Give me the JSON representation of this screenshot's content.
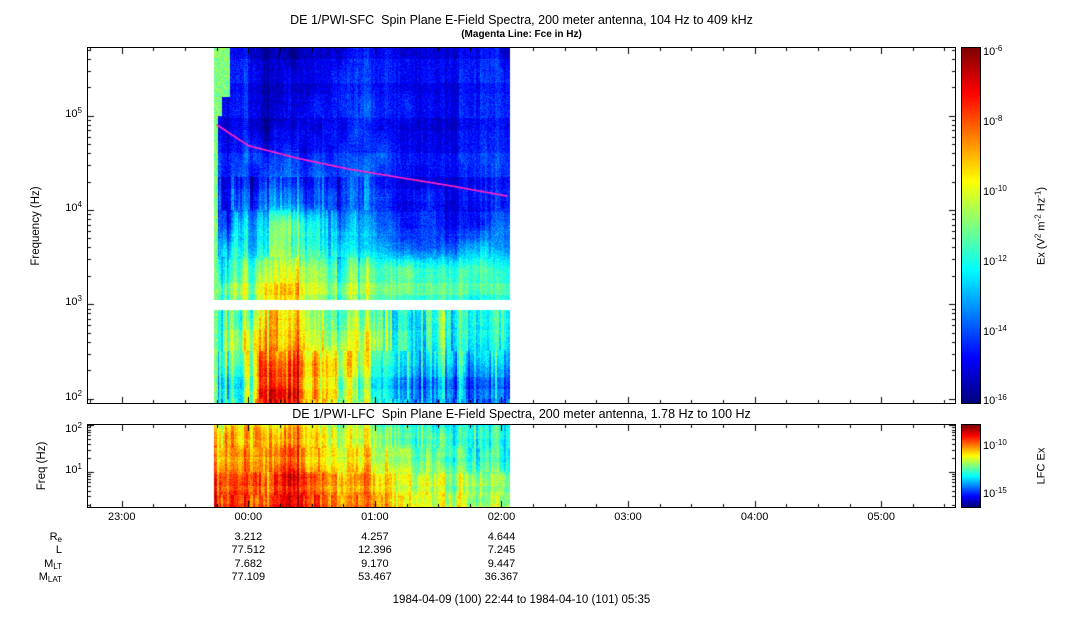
{
  "meta": {
    "background": "#ffffff",
    "axis_color": "#000000"
  },
  "header": {
    "title": "DE 1/PWI-SFC  Spin Plane E-Field Spectra, 200 meter antenna, 104 Hz to 409 kHz",
    "subtitle": "(Magenta Line: Fce in Hz)"
  },
  "panel2": {
    "title": "DE 1/PWI-LFC  Spin Plane E-Field Spectra, 200 meter antenna, 1.78 Hz to 100 Hz"
  },
  "footer": {
    "time_range": "1984-04-09 (100) 22:44 to 1984-04-10 (101) 05:35"
  },
  "x_axis": {
    "range_hours": [
      -1.2667,
      5.5833
    ],
    "ticks": [
      {
        "label": "23:00",
        "hour": -1
      },
      {
        "label": "00:00",
        "hour": 0
      },
      {
        "label": "01:00",
        "hour": 1
      },
      {
        "label": "02:00",
        "hour": 2
      },
      {
        "label": "03:00",
        "hour": 3
      },
      {
        "label": "04:00",
        "hour": 4
      },
      {
        "label": "05:00",
        "hour": 5
      }
    ]
  },
  "ephemeris": {
    "value_hours": [
      0,
      1,
      2
    ],
    "rows": [
      {
        "label": "R",
        "sub": "e",
        "values": [
          "3.212",
          "4.257",
          "4.644"
        ]
      },
      {
        "label": "L",
        "sub": "",
        "values": [
          "77.512",
          "12.396",
          "7.245"
        ]
      },
      {
        "label": "M",
        "sub": "LT",
        "values": [
          "7.682",
          "9.170",
          "9.447"
        ]
      },
      {
        "label": "M",
        "sub": "LAT",
        "values": [
          "77.109",
          "53.467",
          "36.367"
        ]
      }
    ]
  },
  "chart_data": [
    {
      "type": "heatmap",
      "name": "SFC",
      "title": "DE 1/PWI-SFC Spin Plane E-Field Spectra, 200 meter antenna, 104 Hz to 409 kHz",
      "ylabel": "Frequency (Hz)",
      "yscale": "log",
      "ylim": [
        90,
        520000
      ],
      "yticks": [
        {
          "base": "10",
          "exp": "5"
        },
        {
          "base": "10",
          "exp": "4"
        },
        {
          "base": "10",
          "exp": "3"
        },
        {
          "base": "10",
          "exp": "2"
        }
      ],
      "time_span_hours": [
        -0.27,
        2.07
      ],
      "gap_hz": [
        860,
        1120
      ],
      "start_stripe": {
        "t0": -0.27,
        "t1": -0.237,
        "value": 0.5
      },
      "intensity_scale": {
        "log10_max": -6,
        "log10_min": -16
      },
      "grid": {
        "encoding": "hex digit 0-15 maps linearly to log10(Ex) from -16 to -6; rows top(high f) to bottom, 24 time columns over the data span",
        "t0": -0.27,
        "t1": 2.07,
        "logf_top": 5.6,
        "logf_step": 0.25,
        "rows": [
          "112211122222222222222221",
          "112211222232222222222222",
          "212211223232322322222222",
          "212212232323222222222222",
          "312322323232232222222222",
          "313233434333322222222222",
          "414344544433332233222222",
          "516467876544433233222233",
          "647578887665554444445544",
          "758799aa9877777877777766",
          "8697aaba9887777777776666",
          "6678baba9878776667766666",
          "5689b9ba9888876656655555",
          "5679dbdcba98866655554444",
          "5569edecba87765544443333"
        ]
      },
      "fce_line": {
        "color": "#ff22c8",
        "t_hours": [
          -0.25,
          0,
          0.4,
          0.8,
          1.2,
          1.6,
          2.05
        ],
        "freq_hz": [
          80000,
          48000,
          35000,
          27000,
          22000,
          18000,
          14000
        ]
      },
      "colorbar": {
        "label_parts": [
          {
            "t": "Ex (V"
          },
          {
            "t": "2",
            "sup": true
          },
          {
            "t": " m"
          },
          {
            "t": "-2",
            "sup": true
          },
          {
            "t": " Hz"
          },
          {
            "t": "-1",
            "sup": true
          },
          {
            "t": ")"
          }
        ],
        "ticks": [
          {
            "base": "10",
            "exp": "-6",
            "pos": 0.013
          },
          {
            "base": "10",
            "exp": "-8",
            "pos": 0.211
          },
          {
            "base": "10",
            "exp": "-10",
            "pos": 0.409
          },
          {
            "base": "10",
            "exp": "-12",
            "pos": 0.606
          },
          {
            "base": "10",
            "exp": "-14",
            "pos": 0.803
          },
          {
            "base": "10",
            "exp": "-16",
            "pos": 0.997
          }
        ]
      }
    },
    {
      "type": "heatmap",
      "name": "LFC",
      "title": "DE 1/PWI-LFC Spin Plane E-Field Spectra, 200 meter antenna, 1.78 Hz to 100 Hz",
      "ylabel": "Freq (Hz)",
      "yscale": "log",
      "ylim": [
        1.78,
        100
      ],
      "yticks": [
        {
          "base": "10",
          "exp": "2"
        },
        {
          "base": "10",
          "exp": "1"
        }
      ],
      "time_span_hours": [
        -0.27,
        2.07
      ],
      "grid": {
        "encoding": "hex digit 0-15 maps linearly to relative spectral intensity (blue low to red high)",
        "t0": -0.27,
        "t1": 2.07,
        "logf_top": 1.95,
        "logf_step": 0.25,
        "rows": [
          "89aba9cba988877776666665",
          "9aabbacbb998887777766665",
          "aabbbbdcba99988877776665",
          "babcbbdcbaa9998888777766",
          "bbbcbcedcbaaa99988887776",
          "cbccccedcbbaaa9999888877",
          "ccdccdeedcbbbbaaa9998887"
        ]
      },
      "colorbar": {
        "label_parts": [
          {
            "t": "LFC Ex"
          }
        ],
        "ticks": [
          {
            "base": "10",
            "exp": "-10",
            "pos": 0.27
          },
          {
            "base": "10",
            "exp": "-15",
            "pos": 0.85
          }
        ]
      }
    }
  ]
}
